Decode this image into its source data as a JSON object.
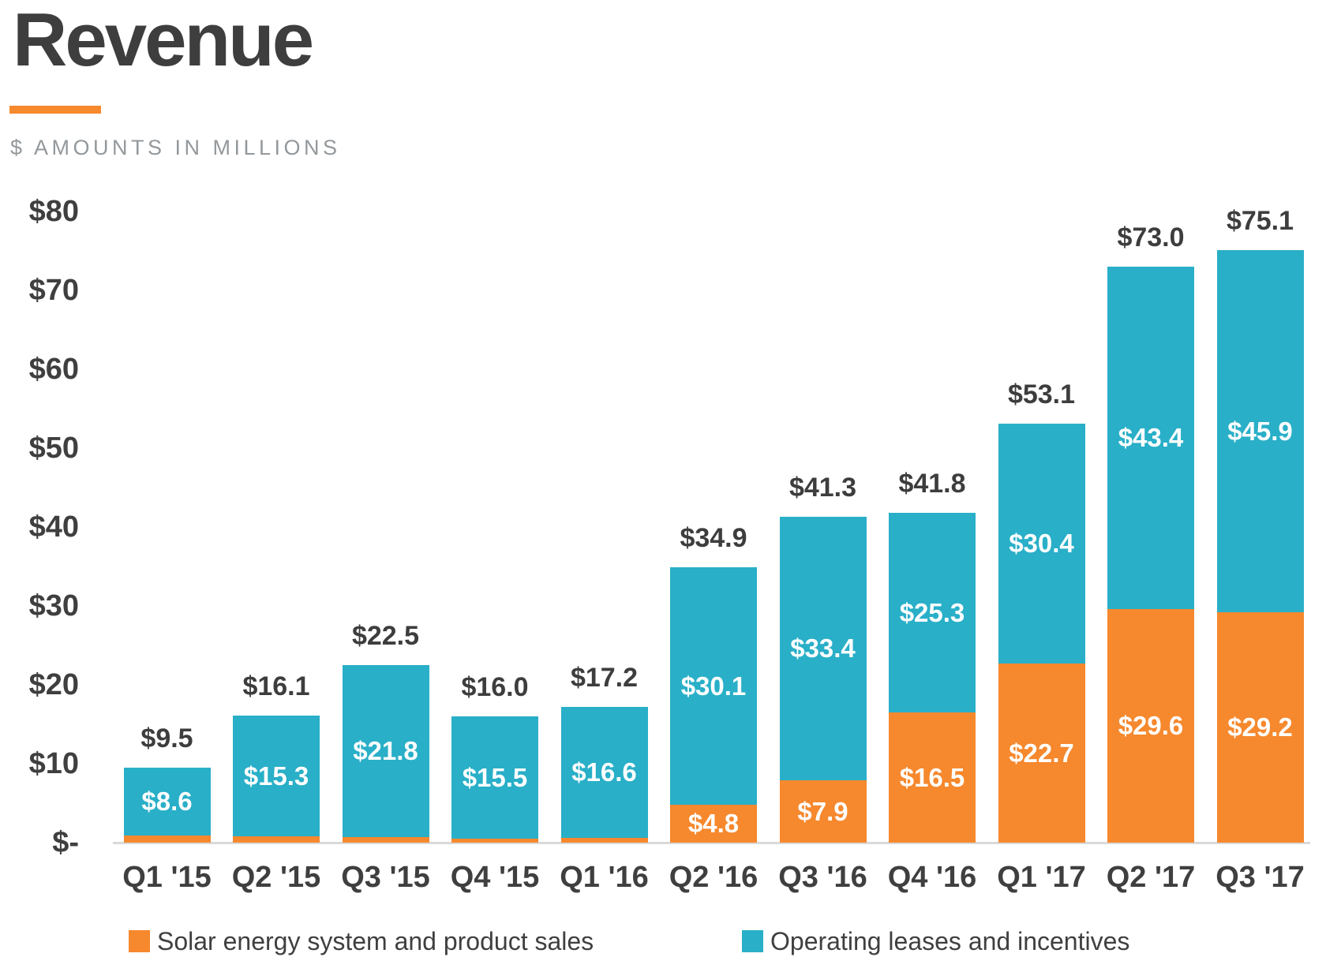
{
  "header": {
    "title": "Revenue",
    "subtitle": "$ AMOUNTS IN MILLIONS"
  },
  "colors": {
    "solar": "#f6882d",
    "leases": "#29afc8",
    "dark_text": "#3f3f3f",
    "subtitle_text": "#93989c",
    "axis_line": "#d9d9d9",
    "accent_underline": "#f6892d",
    "bar_label_text": "#ffffff"
  },
  "chart_data": {
    "type": "bar",
    "stacked": true,
    "title": "Revenue",
    "units": "$ amounts in millions",
    "xlabel": "",
    "ylabel": "",
    "grid": false,
    "legend_position": "bottom",
    "categories": [
      "Q1 '15",
      "Q2 '15",
      "Q3 '15",
      "Q4 '15",
      "Q1 '16",
      "Q2 '16",
      "Q3 '16",
      "Q4 '16",
      "Q1 '17",
      "Q2 '17",
      "Q3 '17"
    ],
    "series": [
      {
        "name": "Solar energy system and product sales",
        "color_key": "solar",
        "values": [
          0.9,
          0.8,
          0.7,
          0.5,
          0.6,
          4.8,
          7.9,
          16.5,
          22.7,
          29.6,
          29.2
        ],
        "labels": [
          "",
          "",
          "",
          "",
          "",
          "$4.8",
          "$7.9",
          "$16.5",
          "$22.7",
          "$29.6",
          "$29.2"
        ]
      },
      {
        "name": "Operating leases and incentives",
        "color_key": "leases",
        "values": [
          8.6,
          15.3,
          21.8,
          15.5,
          16.6,
          30.1,
          33.4,
          25.3,
          30.4,
          43.4,
          45.9
        ],
        "labels": [
          "$8.6",
          "$15.3",
          "$21.8",
          "$15.5",
          "$16.6",
          "$30.1",
          "$33.4",
          "$25.3",
          "$30.4",
          "$43.4",
          "$45.9"
        ]
      }
    ],
    "totals": [
      9.5,
      16.1,
      22.5,
      16.0,
      17.2,
      34.9,
      41.3,
      41.8,
      53.1,
      73.0,
      75.1
    ],
    "total_labels": [
      "$9.5",
      "$16.1",
      "$22.5",
      "$16.0",
      "$17.2",
      "$34.9",
      "$41.3",
      "$41.8",
      "$53.1",
      "$73.0",
      "$75.1"
    ],
    "y_axis": {
      "ticks": [
        "$-",
        "$10",
        "$20",
        "$30",
        "$40",
        "$50",
        "$60",
        "$70",
        "$80"
      ],
      "tick_values": [
        0,
        10,
        20,
        30,
        40,
        50,
        60,
        70,
        80
      ],
      "ylim": [
        0,
        80
      ]
    },
    "legend": [
      {
        "label": "Solar energy system and product sales",
        "color_key": "solar"
      },
      {
        "label": "Operating leases and incentives",
        "color_key": "leases"
      }
    ]
  }
}
